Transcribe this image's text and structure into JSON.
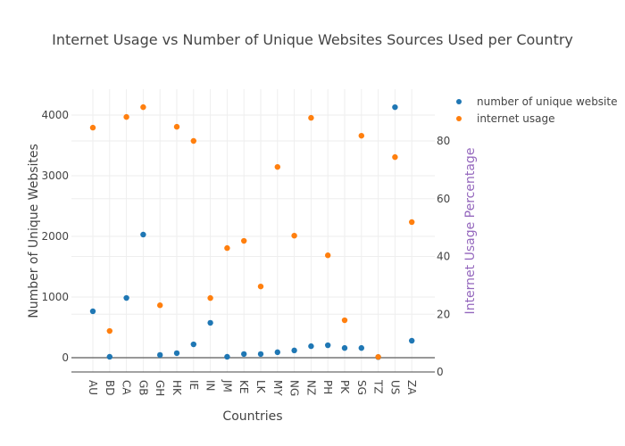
{
  "chart_data": {
    "type": "scatter",
    "title": "Internet Usage vs Number of Unique Websites Sources Used per Country",
    "xlabel": "Countries",
    "ylabel": "Number of Unique Websites",
    "y2label": "Internet Usage Percentage",
    "categories": [
      "AU",
      "BD",
      "CA",
      "GB",
      "GH",
      "HK",
      "IE",
      "IN",
      "JM",
      "KE",
      "LK",
      "MY",
      "NG",
      "NZ",
      "PH",
      "PK",
      "SG",
      "TZ",
      "US",
      "ZA"
    ],
    "y_ticks": [
      0,
      1000,
      2000,
      3000,
      4000
    ],
    "y_tick_labels": [
      "0",
      "1000",
      "2000",
      "3000",
      "4000"
    ],
    "y_range": [
      -250,
      4450
    ],
    "y2_ticks": [
      0,
      20,
      40,
      60,
      80
    ],
    "y2_tick_labels": [
      "0",
      "20",
      "40",
      "60",
      "80"
    ],
    "y2_range": [
      0,
      94
    ],
    "legend_position": "top-right",
    "series": [
      {
        "name": "number of unique website",
        "axis": "left",
        "color": "#1f77b4",
        "values": [
          765,
          15,
          985,
          2030,
          45,
          75,
          220,
          575,
          15,
          60,
          60,
          90,
          120,
          190,
          205,
          160,
          160,
          10,
          4130,
          280
        ]
      },
      {
        "name": "internet usage",
        "axis": "right",
        "color": "#ff7f0e",
        "values": [
          84.6,
          14.2,
          88.3,
          91.7,
          23.1,
          84.9,
          80.0,
          25.6,
          42.9,
          45.4,
          29.6,
          71.0,
          47.2,
          88.0,
          40.4,
          17.9,
          81.8,
          5.2,
          74.4,
          51.9
        ]
      }
    ]
  }
}
